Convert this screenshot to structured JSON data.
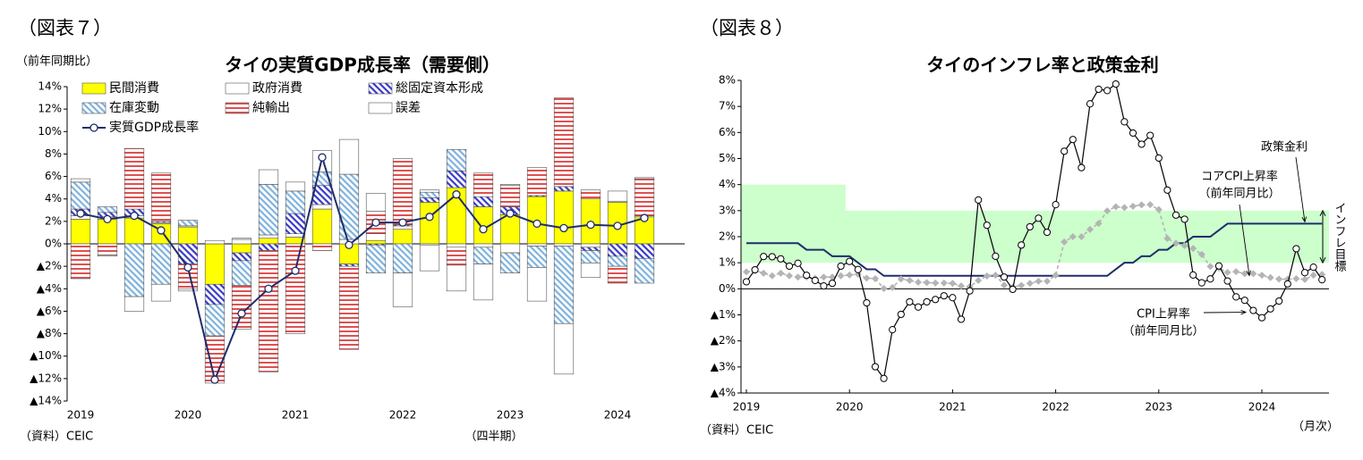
{
  "chart_data": [
    {
      "type": "stacked_bar",
      "figure_label": "（図表７）",
      "title": "タイの実質GDP成長率（需要側）",
      "ylabel": "（前年同期比）",
      "xlabel": "（四半期）",
      "source": "（資料）CEIC",
      "categories": [
        "2019",
        null,
        null,
        null,
        "2020",
        null,
        null,
        null,
        "2021",
        null,
        null,
        null,
        "2022",
        null,
        null,
        null,
        "2023",
        null,
        null,
        null,
        "2024",
        null
      ],
      "series": [
        {
          "name": "民間消費",
          "color": "#ffff00",
          "hatch": null,
          "values": [
            2.2,
            2.2,
            2.3,
            1.8,
            1.5,
            -3.6,
            -0.8,
            0.5,
            0.6,
            3.1,
            -1.8,
            0.3,
            1.3,
            3.7,
            5.0,
            3.3,
            2.6,
            4.2,
            4.7,
            4.0,
            3.7,
            2.4
          ]
        },
        {
          "name": "政府消費",
          "color": "#ffffff",
          "hatch": null,
          "values": [
            0.3,
            0.2,
            0.2,
            0.1,
            0.1,
            0.3,
            0.4,
            0.3,
            0.3,
            0.4,
            0.4,
            0.6,
            0.3,
            -0.1,
            -0.3,
            -0.3,
            -0.8,
            -0.2,
            -0.2,
            -0.3,
            0.1,
            0.1
          ]
        },
        {
          "name": "総固定資本形成",
          "color": "#3a3ac8",
          "hatch": "diagonal",
          "values": [
            0.6,
            0.4,
            0.6,
            0.1,
            -1.8,
            -1.8,
            -0.7,
            -0.6,
            1.8,
            1.7,
            -0.2,
            -0.1,
            0.1,
            0.4,
            1.5,
            0.9,
            0.7,
            0.1,
            0.4,
            -0.3,
            -1.1,
            -1.3
          ]
        },
        {
          "name": "在庫変動",
          "color": "#7fb2dc",
          "hatch": "diagonal",
          "values": [
            2.4,
            0.5,
            -4.7,
            -3.6,
            0.5,
            -2.8,
            -2.2,
            4.5,
            2.0,
            1.2,
            5.8,
            -2.5,
            -2.6,
            0.5,
            1.9,
            -1.5,
            -1.8,
            -1.9,
            -6.9,
            -1.1,
            -0.9,
            -2.2
          ]
        },
        {
          "name": "純輸出",
          "color": "#e05050",
          "hatch": "horizontal",
          "values": [
            -3.1,
            -1.0,
            5.4,
            4.3,
            -2.2,
            -4.2,
            -3.9,
            -10.8,
            -8.0,
            -0.6,
            -7.4,
            2.0,
            5.9,
            0.2,
            -1.6,
            2.1,
            1.9,
            2.5,
            7.9,
            0.8,
            -1.5,
            3.3
          ]
        },
        {
          "name": "誤差",
          "color": "#ffffff",
          "hatch": null,
          "values": [
            0.3,
            -0.1,
            -1.3,
            -1.5,
            -0.2,
            0.0,
            0.1,
            1.3,
            0.8,
            1.9,
            3.1,
            1.6,
            -3.0,
            -2.3,
            -2.3,
            -3.2,
            0.1,
            -3.0,
            -4.5,
            -1.3,
            0.9,
            0.1
          ]
        }
      ],
      "line_series": {
        "name": "実質GDP成長率",
        "color": "#1f2d6b",
        "marker": "circle",
        "values": [
          2.7,
          2.2,
          2.5,
          1.2,
          -2.1,
          -12.1,
          -6.2,
          -4.0,
          -2.4,
          7.7,
          -0.1,
          1.9,
          1.9,
          2.4,
          4.4,
          1.3,
          2.7,
          1.8,
          1.4,
          1.7,
          1.6,
          2.3
        ]
      },
      "ylim": [
        -14,
        14
      ],
      "yticks": [
        {
          "value": 14,
          "label": "14%"
        },
        {
          "value": 12,
          "label": "12%"
        },
        {
          "value": 10,
          "label": "10%"
        },
        {
          "value": 8,
          "label": "8%"
        },
        {
          "value": 6,
          "label": "6%"
        },
        {
          "value": 4,
          "label": "4%"
        },
        {
          "value": 2,
          "label": "2%"
        },
        {
          "value": 0,
          "label": "0%"
        },
        {
          "value": -2,
          "label": "▲2%"
        },
        {
          "value": -4,
          "label": "▲4%"
        },
        {
          "value": -6,
          "label": "▲6%"
        },
        {
          "value": -8,
          "label": "▲8%"
        },
        {
          "value": -10,
          "label": "▲10%"
        },
        {
          "value": -12,
          "label": "▲12%"
        },
        {
          "value": -14,
          "label": "▲14%"
        }
      ],
      "grid": false,
      "legend": "top-left"
    },
    {
      "type": "line",
      "figure_label": "（図表８）",
      "title": "タイのインフレ率と政策金利",
      "xlabel": "（月次）",
      "source": "（資料）CEIC",
      "categories": [
        "2019",
        null,
        null,
        null,
        null,
        null,
        null,
        null,
        null,
        null,
        null,
        null,
        "2020",
        null,
        null,
        null,
        null,
        null,
        null,
        null,
        null,
        null,
        null,
        null,
        "2021",
        null,
        null,
        null,
        null,
        null,
        null,
        null,
        null,
        null,
        null,
        null,
        "2022",
        null,
        null,
        null,
        null,
        null,
        null,
        null,
        null,
        null,
        null,
        null,
        "2023",
        null,
        null,
        null,
        null,
        null,
        null,
        null,
        null,
        null,
        null,
        null,
        "2024",
        null,
        null,
        null,
        null,
        null,
        null,
        null
      ],
      "series": [
        {
          "name": "CPI上昇率",
          "color": "#000000",
          "marker": "circle",
          "dashed": false,
          "values": [
            0.27,
            0.73,
            1.24,
            1.23,
            1.15,
            0.87,
            0.98,
            0.52,
            0.32,
            0.11,
            0.21,
            0.87,
            1.05,
            0.74,
            -0.54,
            -2.99,
            -3.44,
            -1.57,
            -0.98,
            -0.5,
            -0.7,
            -0.5,
            -0.41,
            -0.27,
            -0.34,
            -1.17,
            -0.08,
            3.41,
            2.44,
            1.25,
            0.45,
            -0.02,
            1.68,
            2.38,
            2.71,
            2.17,
            3.23,
            5.28,
            5.73,
            4.65,
            7.1,
            7.66,
            7.61,
            7.86,
            6.41,
            5.98,
            5.55,
            5.89,
            5.02,
            3.79,
            2.83,
            2.67,
            0.53,
            0.23,
            0.38,
            0.88,
            0.3,
            -0.31,
            -0.44,
            -0.83,
            -1.11,
            -0.77,
            -0.47,
            0.19,
            1.54,
            0.62,
            0.83,
            0.35
          ]
        },
        {
          "name": "コアCPI上昇率",
          "color": "#b4b4b4",
          "marker": "diamond",
          "dashed": true,
          "values": [
            0.65,
            0.7,
            0.6,
            0.5,
            0.6,
            0.5,
            0.45,
            0.45,
            0.4,
            0.45,
            0.45,
            0.5,
            0.53,
            0.56,
            0.41,
            0.39,
            0.01,
            0.05,
            0.38,
            0.32,
            0.25,
            0.24,
            0.22,
            0.22,
            0.21,
            0.11,
            0.08,
            0.32,
            0.49,
            0.52,
            0.14,
            0.07,
            0.13,
            0.21,
            0.29,
            0.29,
            0.52,
            1.8,
            2.0,
            2.0,
            2.28,
            2.51,
            2.99,
            3.15,
            3.12,
            3.17,
            3.22,
            3.23,
            3.04,
            1.93,
            1.75,
            1.66,
            1.55,
            1.32,
            0.86,
            0.79,
            0.63,
            0.66,
            0.58,
            0.58,
            0.52,
            0.43,
            0.37,
            0.37,
            0.39,
            0.36,
            0.52,
            0.55
          ]
        },
        {
          "name": "政策金利",
          "color": "#1f2d6b",
          "marker": null,
          "dashed": false,
          "values": [
            1.75,
            1.75,
            1.75,
            1.75,
            1.75,
            1.75,
            1.75,
            1.5,
            1.5,
            1.5,
            1.25,
            1.25,
            1.25,
            1.0,
            0.75,
            0.75,
            0.5,
            0.5,
            0.5,
            0.5,
            0.5,
            0.5,
            0.5,
            0.5,
            0.5,
            0.5,
            0.5,
            0.5,
            0.5,
            0.5,
            0.5,
            0.5,
            0.5,
            0.5,
            0.5,
            0.5,
            0.5,
            0.5,
            0.5,
            0.5,
            0.5,
            0.5,
            0.5,
            0.75,
            1.0,
            1.0,
            1.25,
            1.25,
            1.5,
            1.5,
            1.75,
            1.75,
            2.0,
            2.0,
            2.0,
            2.25,
            2.5,
            2.5,
            2.5,
            2.5,
            2.5,
            2.5,
            2.5,
            2.5,
            2.5,
            2.5,
            2.5,
            2.5
          ]
        }
      ],
      "target_band": {
        "name": "インフレ目標",
        "color": "#ccffcc",
        "upper": [
          4,
          4,
          4,
          4,
          4,
          4,
          4,
          4,
          4,
          4,
          4,
          4,
          3,
          3,
          3,
          3,
          3,
          3,
          3,
          3,
          3,
          3,
          3,
          3,
          3,
          3,
          3,
          3,
          3,
          3,
          3,
          3,
          3,
          3,
          3,
          3,
          3,
          3,
          3,
          3,
          3,
          3,
          3,
          3,
          3,
          3,
          3,
          3,
          3,
          3,
          3,
          3,
          3,
          3,
          3,
          3,
          3,
          3,
          3,
          3,
          3,
          3,
          3,
          3,
          3,
          3,
          3,
          3
        ],
        "lower": [
          1,
          1,
          1,
          1,
          1,
          1,
          1,
          1,
          1,
          1,
          1,
          1,
          1,
          1,
          1,
          1,
          1,
          1,
          1,
          1,
          1,
          1,
          1,
          1,
          1,
          1,
          1,
          1,
          1,
          1,
          1,
          1,
          1,
          1,
          1,
          1,
          1,
          1,
          1,
          1,
          1,
          1,
          1,
          1,
          1,
          1,
          1,
          1,
          1,
          1,
          1,
          1,
          1,
          1,
          1,
          1,
          1,
          1,
          1,
          1,
          1,
          1,
          1,
          1,
          1,
          1,
          1,
          1
        ]
      },
      "annotations": [
        {
          "lines": [
            "政策金利"
          ]
        },
        {
          "lines": [
            "コアCPI上昇率",
            "（前年同月比）"
          ]
        },
        {
          "lines": [
            "CPI上昇率",
            "（前年同月比）"
          ]
        }
      ],
      "ylim": [
        -4,
        8
      ],
      "yticks": [
        {
          "value": 8,
          "label": "8%"
        },
        {
          "value": 7,
          "label": "7%"
        },
        {
          "value": 6,
          "label": "6%"
        },
        {
          "value": 5,
          "label": "5%"
        },
        {
          "value": 4,
          "label": "4%"
        },
        {
          "value": 3,
          "label": "3%"
        },
        {
          "value": 2,
          "label": "2%"
        },
        {
          "value": 1,
          "label": "1%"
        },
        {
          "value": 0,
          "label": "0%"
        },
        {
          "value": -1,
          "label": "▲1%"
        },
        {
          "value": -2,
          "label": "▲2%"
        },
        {
          "value": -3,
          "label": "▲3%"
        },
        {
          "value": -4,
          "label": "▲4%"
        }
      ],
      "grid": false
    }
  ]
}
